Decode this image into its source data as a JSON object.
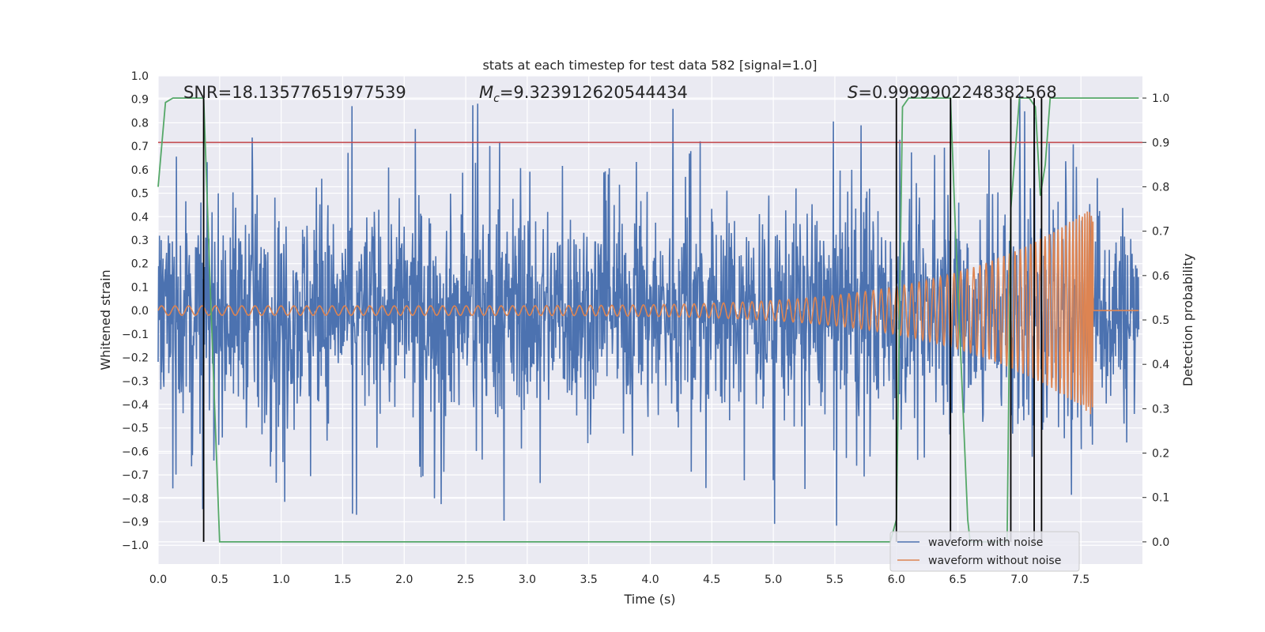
{
  "chart_data": {
    "type": "line",
    "title": "stats at each timestep for test data 582 [signal=1.0]",
    "xlabel": "Time (s)",
    "ylabel": "Whitened strain",
    "ylabel_right": "Detection probability",
    "xlim": [
      0.0,
      8.0
    ],
    "ylim": [
      -1.08,
      1.0
    ],
    "ylim_right": [
      -0.05,
      1.05
    ],
    "x_ticks": [
      "0.0",
      "0.5",
      "1.0",
      "1.5",
      "2.0",
      "2.5",
      "3.0",
      "3.5",
      "4.0",
      "4.5",
      "5.0",
      "5.5",
      "6.0",
      "6.5",
      "7.0",
      "7.5"
    ],
    "y_ticks": [
      "1.0",
      "0.9",
      "0.8",
      "0.7",
      "0.6",
      "0.5",
      "0.4",
      "0.3",
      "0.2",
      "0.1",
      "0.0",
      "−0.1",
      "−0.2",
      "−0.3",
      "−0.4",
      "−0.5",
      "−0.6",
      "−0.7",
      "−0.8",
      "−0.9",
      "−1.0"
    ],
    "y_ticks_right": [
      "1.0",
      "0.9",
      "0.8",
      "0.7",
      "0.6",
      "0.5",
      "0.4",
      "0.3",
      "0.2",
      "0.1",
      "0.0"
    ],
    "annotations": {
      "snr": "SNR=18.13577651977539",
      "mc_symbol": "M",
      "mc_sub": "c",
      "mc_value": "=9.323912620544434",
      "s_symbol": "S",
      "s_value": "=0.9999902248382568"
    },
    "threshold": {
      "value": 0.9,
      "axis": "right",
      "color": "#c44e52"
    },
    "detection_probability": {
      "color": "#55a868",
      "x": [
        0.0,
        0.06,
        0.12,
        0.25,
        0.37,
        0.42,
        0.5,
        1.0,
        2.0,
        3.0,
        4.0,
        5.0,
        5.95,
        6.0,
        6.05,
        6.1,
        6.2,
        6.44,
        6.48,
        6.58,
        6.6,
        6.9,
        6.93,
        7.0,
        7.08,
        7.13,
        7.17,
        7.21,
        7.25,
        7.3,
        7.5,
        7.97
      ],
      "y": [
        0.8,
        0.99,
        1.0,
        1.0,
        1.0,
        0.6,
        0.0,
        0.0,
        0.0,
        0.0,
        0.0,
        0.0,
        0.0,
        0.05,
        0.98,
        1.0,
        1.0,
        1.0,
        0.7,
        0.05,
        0.0,
        0.0,
        0.75,
        1.0,
        1.0,
        0.98,
        0.78,
        0.85,
        1.0,
        1.0,
        1.0,
        1.0
      ]
    },
    "vertical_markers": {
      "color": "#000000",
      "x": [
        0.37,
        6.0,
        6.44,
        6.93,
        7.12,
        7.18
      ]
    },
    "series": [
      {
        "name": "waveform with noise",
        "color": "#4c72b0",
        "envelope": "approx. ±0.5, peaks to ±0.9",
        "x_range": [
          0.0,
          7.97
        ]
      },
      {
        "name": "waveform without noise",
        "color": "#dd8452",
        "envelope": "chirp, amplitude 0.02 rising to 0.45 at t=7.6 s, then 0",
        "x_range": [
          0.0,
          7.97
        ]
      }
    ],
    "legend_position": "lower-right",
    "grid": true
  }
}
